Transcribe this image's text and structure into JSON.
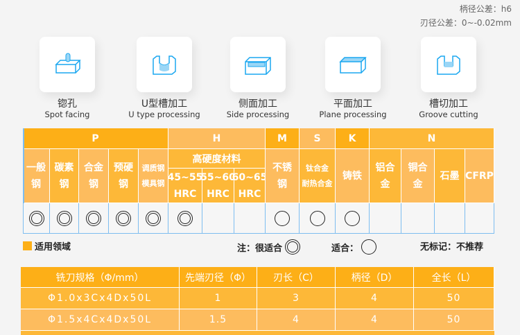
{
  "tolerances": {
    "shank": "柄径公差：h6",
    "blade": "刃径公差：0~-0.02mm"
  },
  "processes": [
    {
      "zh": "锪孔",
      "en": "Spot facing",
      "icon": "spot-facing-icon"
    },
    {
      "zh": "U型槽加工",
      "en": "U type processing",
      "icon": "u-groove-icon"
    },
    {
      "zh": "侧面加工",
      "en": "Side processing",
      "icon": "side-processing-icon"
    },
    {
      "zh": "平面加工",
      "en": "Plane processing",
      "icon": "plane-processing-icon"
    },
    {
      "zh": "槽切加工",
      "en": "Groove cutting",
      "icon": "groove-cutting-icon"
    }
  ],
  "material_table": {
    "groups": [
      "P",
      "H",
      "M",
      "S",
      "K",
      "N"
    ],
    "h_sub": "高硬度材料",
    "columns": [
      {
        "l1": "一般",
        "l2": "钢",
        "mark": "very"
      },
      {
        "l1": "碳素",
        "l2": "钢",
        "mark": "very"
      },
      {
        "l1": "合金",
        "l2": "钢",
        "mark": "very"
      },
      {
        "l1": "预硬",
        "l2": "钢",
        "mark": "very"
      },
      {
        "l1": "调质钢",
        "l2": "模具钢",
        "mark": "very"
      },
      {
        "l1": "45~55",
        "l2": "HRC",
        "mark": "very"
      },
      {
        "l1": "55~60",
        "l2": "HRC",
        "mark": ""
      },
      {
        "l1": "60~65",
        "l2": "HRC",
        "mark": ""
      },
      {
        "l1": "不锈",
        "l2": "钢",
        "mark": "ok"
      },
      {
        "l1": "钛合金",
        "l2": "耐热合金",
        "mark": "ok"
      },
      {
        "l1": "铸铁",
        "l2": "",
        "mark": "ok"
      },
      {
        "l1": "铝合",
        "l2": "金",
        "mark": ""
      },
      {
        "l1": "铜合",
        "l2": "金",
        "mark": ""
      },
      {
        "l1": "石墨",
        "l2": "",
        "mark": ""
      },
      {
        "l1": "CFRP",
        "l2": "",
        "mark": ""
      }
    ]
  },
  "legend": {
    "title": "适用领域",
    "very": "注：很适合",
    "ok": "适合：",
    "none": "无标记：不推荐"
  },
  "spec_table": {
    "headers": [
      "铣刀规格（Φ/mm）",
      "先端刃径（Φ）",
      "刃长（C）",
      "柄径（D）",
      "全长（L）"
    ],
    "rows": [
      [
        "Φ1.0x3Cx4Dx50L",
        "1",
        "3",
        "4",
        "50"
      ],
      [
        "Φ1.5x4Cx4Dx50L",
        "1.5",
        "4",
        "4",
        "50"
      ]
    ]
  },
  "colors": {
    "orange_dark": "#fdaf17",
    "orange_light": "#fdbc5e",
    "grid_blue": "#7dbdf0"
  }
}
